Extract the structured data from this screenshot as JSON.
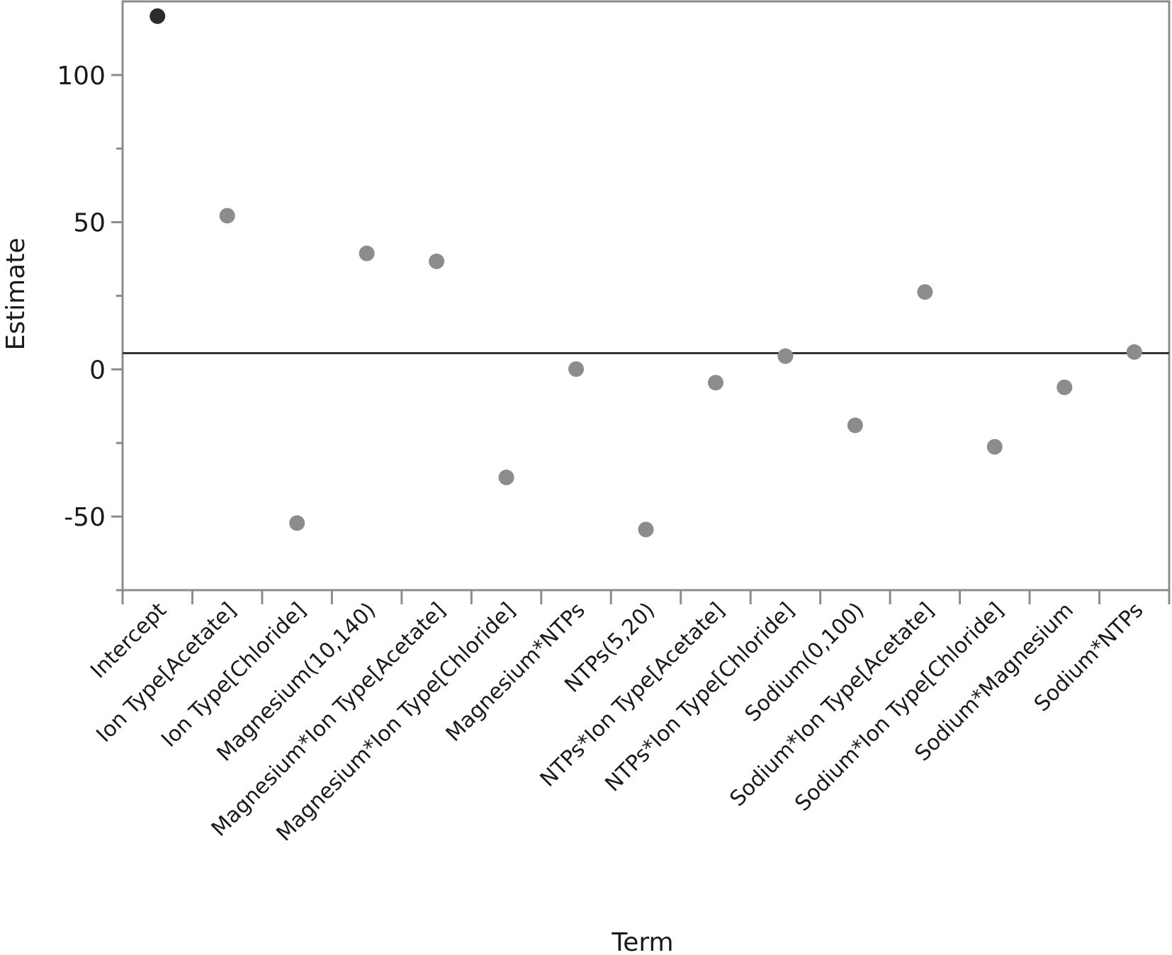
{
  "chart_data": {
    "type": "scatter",
    "title": "",
    "xlabel": "Term",
    "ylabel": "Estimate",
    "categories": [
      "Intercept",
      "Ion Type[Acetate]",
      "Ion Type[Chloride]",
      "Magnesium(10,140)",
      "Magnesium*Ion Type[Acetate]",
      "Magnesium*Ion Type[Chloride]",
      "Magnesium*NTPs",
      "NTPs(5,20)",
      "NTPs*Ion Type[Acetate]",
      "NTPs*Ion Type[Chloride]",
      "Sodium(0,100)",
      "Sodium*Ion Type[Acetate]",
      "Sodium*Ion Type[Chloride]",
      "Sodium*Magnesium",
      "Sodium*NTPs"
    ],
    "values": [
      120,
      52.2,
      -52.2,
      39.4,
      36.7,
      -36.7,
      0.1,
      -54.4,
      -4.5,
      4.5,
      -19.0,
      26.3,
      -26.3,
      -6.1,
      5.9
    ],
    "highlight_index": 0,
    "reference_line": 5.5,
    "ylim": [
      -75,
      125
    ],
    "yticks": [
      -50,
      0,
      50,
      100
    ],
    "y_minor_ticks": [
      -75,
      -25,
      25,
      75
    ],
    "grid": false,
    "legend": "none",
    "colors": {
      "point": "#8c8c8c",
      "highlight_point": "#2b2b2b",
      "frame": "#8c8c8c",
      "reference_line": "#333333"
    }
  }
}
